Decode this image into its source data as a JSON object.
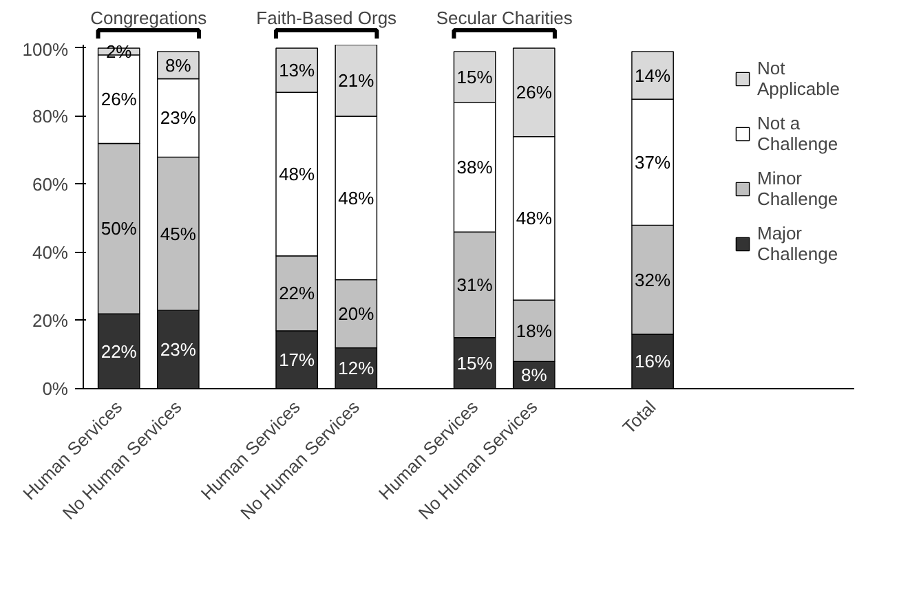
{
  "chart_data": {
    "type": "bar",
    "stacked": true,
    "legend": "top right",
    "grid": false,
    "categories": [
      "Human Services",
      "No Human Services",
      null,
      "Human Services",
      "No Human Services",
      null,
      "Human Services",
      "No Human Services",
      null,
      "Total"
    ],
    "series": [
      {
        "name": "Major Challenge",
        "color": "#333333",
        "values": [
          22,
          23,
          null,
          17,
          12,
          null,
          15,
          8,
          null,
          16
        ],
        "value_labels": [
          "22%",
          "23%",
          null,
          "17%",
          "12%",
          null,
          "15%",
          "8%",
          null,
          "16%"
        ]
      },
      {
        "name": "Minor Challenge",
        "color": "#c0c0c0",
        "values": [
          50,
          45,
          null,
          22,
          20,
          null,
          31,
          18,
          null,
          32
        ],
        "value_labels": [
          "50%",
          "45%",
          null,
          "22%",
          "20%",
          null,
          "31%",
          "18%",
          null,
          "32%"
        ]
      },
      {
        "name": "Not a Challenge",
        "color": "#ffffff",
        "values": [
          26,
          23,
          null,
          48,
          48,
          null,
          38,
          48,
          null,
          37
        ],
        "value_labels": [
          "26%",
          "23%",
          null,
          "48%",
          "48%",
          null,
          "38%",
          "48%",
          null,
          "37%"
        ]
      },
      {
        "name": "Not Applicable",
        "color": "#d9d9d9",
        "values": [
          2,
          8,
          null,
          13,
          21,
          null,
          15,
          26,
          null,
          14
        ],
        "value_labels": [
          "2%",
          "8%",
          null,
          "13%",
          "21%",
          null,
          "15%",
          "26%",
          null,
          "14%"
        ]
      }
    ],
    "ylim": [
      0,
      101
    ],
    "yticks": [
      {
        "value": 0,
        "label": "0%"
      },
      {
        "value": 20,
        "label": "20%"
      },
      {
        "value": 40,
        "label": "40%"
      },
      {
        "value": 60,
        "label": "60%"
      },
      {
        "value": 80,
        "label": "80%"
      },
      {
        "value": 100,
        "label": "100%"
      }
    ],
    "annotations": [
      "Congregations",
      "Faith-Based Orgs",
      "Secular Charities"
    ]
  }
}
